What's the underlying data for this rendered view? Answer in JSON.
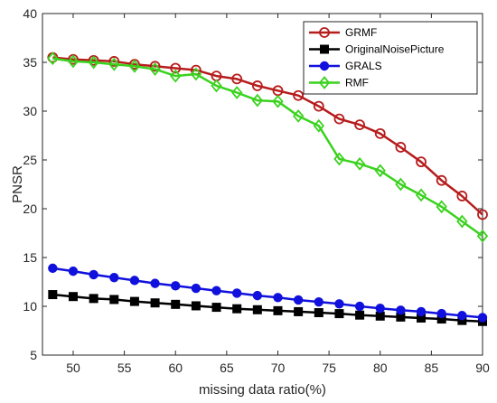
{
  "chart_data": {
    "type": "line",
    "xlabel": "missing data ratio(%)",
    "ylabel": "PNSR",
    "xlim": [
      47,
      90
    ],
    "ylim": [
      5,
      40
    ],
    "xticks": [
      50,
      55,
      60,
      65,
      70,
      75,
      80,
      85,
      90
    ],
    "yticks": [
      5,
      10,
      15,
      20,
      25,
      30,
      35,
      40
    ],
    "x": [
      48,
      50,
      52,
      54,
      56,
      58,
      60,
      62,
      64,
      66,
      68,
      70,
      72,
      74,
      76,
      78,
      80,
      82,
      84,
      86,
      88,
      90
    ],
    "legend_position": "top-right",
    "grid": false,
    "series": [
      {
        "name": "GRMF",
        "color": "#b71c1c",
        "marker": "circle",
        "values": [
          35.5,
          35.3,
          35.2,
          35.1,
          34.8,
          34.6,
          34.4,
          34.2,
          33.6,
          33.3,
          32.6,
          32.1,
          31.6,
          30.5,
          29.2,
          28.6,
          27.7,
          26.3,
          24.8,
          22.9,
          21.3,
          19.4
        ]
      },
      {
        "name": "OriginalNoisePicture",
        "color": "#000000",
        "marker": "square",
        "values": [
          11.2,
          11.0,
          10.8,
          10.7,
          10.5,
          10.35,
          10.2,
          10.05,
          9.9,
          9.75,
          9.65,
          9.55,
          9.45,
          9.35,
          9.25,
          9.1,
          9.0,
          8.9,
          8.8,
          8.7,
          8.55,
          8.45
        ]
      },
      {
        "name": "GRALS",
        "color": "#1111dd",
        "marker": "circle",
        "values": [
          13.9,
          13.6,
          13.25,
          12.95,
          12.65,
          12.35,
          12.1,
          11.85,
          11.6,
          11.35,
          11.1,
          10.9,
          10.65,
          10.45,
          10.25,
          10.0,
          9.8,
          9.6,
          9.45,
          9.25,
          9.05,
          8.85
        ]
      },
      {
        "name": "RMF",
        "color": "#3ad21e",
        "marker": "diamond",
        "values": [
          35.4,
          35.1,
          35.0,
          34.8,
          34.6,
          34.3,
          33.6,
          33.8,
          32.6,
          31.9,
          31.1,
          31.0,
          29.5,
          28.5,
          25.1,
          24.6,
          23.9,
          22.5,
          21.4,
          20.2,
          18.7,
          17.2
        ]
      }
    ]
  }
}
